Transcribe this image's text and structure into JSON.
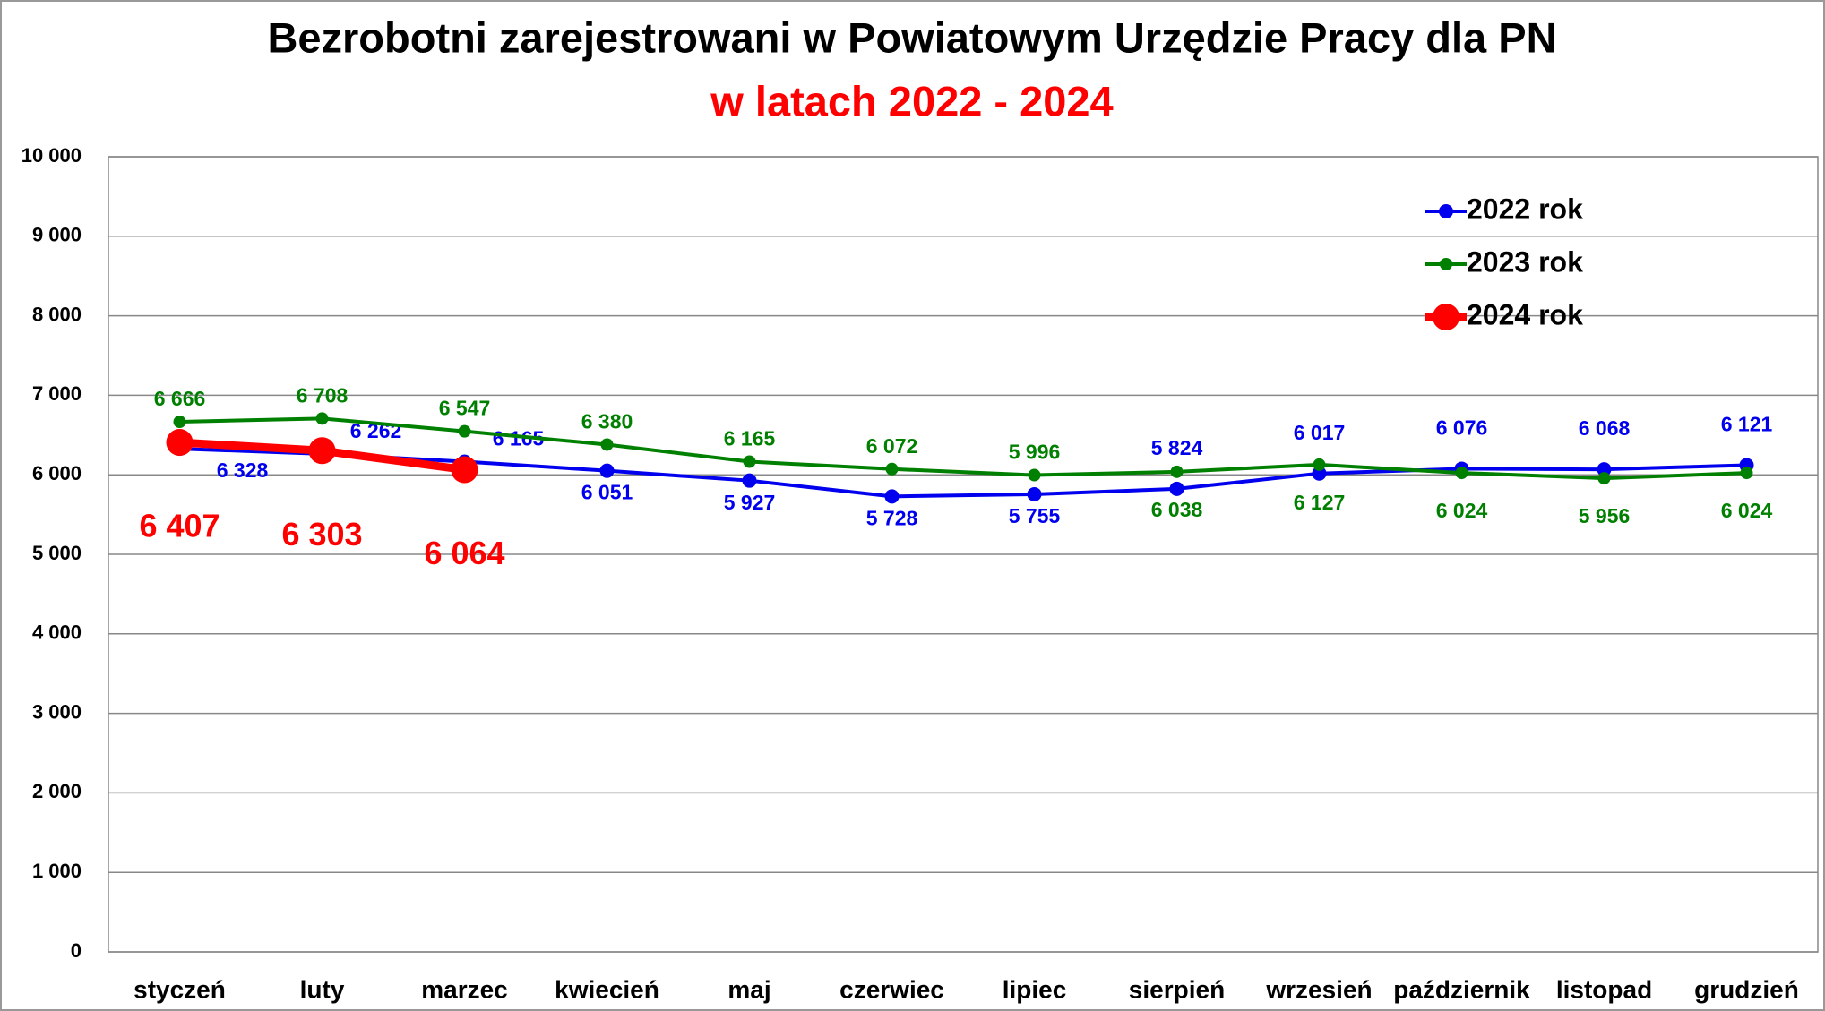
{
  "chart_data": {
    "type": "line",
    "title": "Bezrobotni zarejestrowani w Powiatowym Urzędzie Pracy dla PN",
    "subtitle": "w latach 2022 - 2024",
    "categories": [
      "styczeń",
      "luty",
      "marzec",
      "kwiecień",
      "maj",
      "czerwiec",
      "lipiec",
      "sierpień",
      "wrzesień",
      "październik",
      "listopad",
      "grudzień"
    ],
    "series": [
      {
        "name": "2022 rok",
        "color": "#0000ee",
        "values": [
          6328,
          6262,
          6165,
          6051,
          5927,
          5728,
          5755,
          5824,
          6017,
          6076,
          6068,
          6121
        ],
        "value_labels": [
          "6 328",
          "6 262",
          "6 165",
          "6 051",
          "5 927",
          "5 728",
          "5 755",
          "5 824",
          "6 017",
          "6 076",
          "6 068",
          "6 121"
        ]
      },
      {
        "name": "2023 rok",
        "color": "#008000",
        "values": [
          6666,
          6708,
          6547,
          6380,
          6165,
          6072,
          5996,
          6038,
          6127,
          6024,
          5956,
          6024
        ],
        "value_labels": [
          "6 666",
          "6 708",
          "6 547",
          "6 380",
          "6 165",
          "6 072",
          "5 996",
          "6 038",
          "6 127",
          "6 024",
          "5 956",
          "6 024"
        ]
      },
      {
        "name": "2024 rok",
        "color": "#ff0000",
        "values": [
          6407,
          6303,
          6064,
          null,
          null,
          null,
          null,
          null,
          null,
          null,
          null,
          null
        ],
        "value_labels": [
          "6 407",
          "6 303",
          "6 064",
          null,
          null,
          null,
          null,
          null,
          null,
          null,
          null,
          null
        ]
      }
    ],
    "ylim": [
      0,
      10000
    ],
    "yticks": [
      0,
      {
        "value": 1000,
        "label": "1 000"
      },
      {
        "value": 2000,
        "label": "2 000"
      },
      {
        "value": 3000,
        "label": "3 000"
      },
      {
        "value": 4000,
        "label": "4 000"
      },
      {
        "value": 5000,
        "label": "5 000"
      },
      {
        "value": 6000,
        "label": "6 000"
      },
      {
        "value": 7000,
        "label": "7 000"
      },
      {
        "value": 8000,
        "label": "8 000"
      },
      {
        "value": 9000,
        "label": "9 000"
      },
      {
        "value": 10000,
        "label": "10 000"
      }
    ],
    "grid": true,
    "legend": "upper right"
  }
}
